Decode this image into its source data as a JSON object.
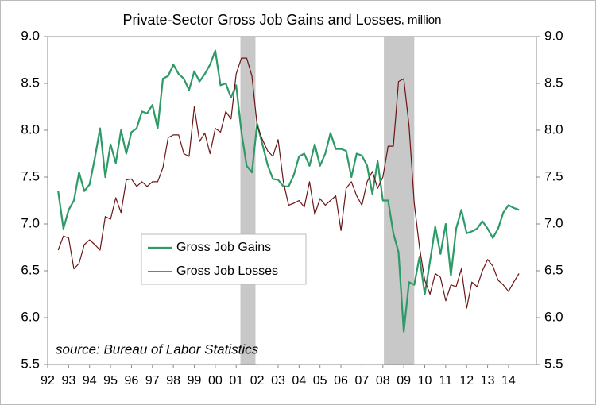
{
  "chart_data": {
    "type": "line",
    "title": "Private-Sector Gross Job Gains and Losses",
    "title_suffix": ", million",
    "annotation": "source: Bureau of Labor Statistics",
    "x": [
      1992.5,
      1992.75,
      1993,
      1993.25,
      1993.5,
      1993.75,
      1994,
      1994.25,
      1994.5,
      1994.75,
      1995,
      1995.25,
      1995.5,
      1995.75,
      1996,
      1996.25,
      1996.5,
      1996.75,
      1997,
      1997.25,
      1997.5,
      1997.75,
      1998,
      1998.25,
      1998.5,
      1998.75,
      1999,
      1999.25,
      1999.5,
      1999.75,
      2000,
      2000.25,
      2000.5,
      2000.75,
      2001,
      2001.25,
      2001.5,
      2001.75,
      2002,
      2002.25,
      2002.5,
      2002.75,
      2003,
      2003.25,
      2003.5,
      2003.75,
      2004,
      2004.25,
      2004.5,
      2004.75,
      2005,
      2005.25,
      2005.5,
      2005.75,
      2006,
      2006.25,
      2006.5,
      2006.75,
      2007,
      2007.25,
      2007.5,
      2007.75,
      2008,
      2008.25,
      2008.5,
      2008.75,
      2009,
      2009.25,
      2009.5,
      2009.75,
      2010,
      2010.25,
      2010.5,
      2010.75,
      2011,
      2011.25,
      2011.5,
      2011.75,
      2012,
      2012.25,
      2012.5,
      2012.75,
      2013,
      2013.25,
      2013.5,
      2013.75,
      2014,
      2014.25,
      2014.5
    ],
    "series": [
      {
        "name": "Gross Job Gains",
        "color": "#2e9a68",
        "values": [
          7.35,
          6.95,
          7.15,
          7.25,
          7.55,
          7.35,
          7.42,
          7.7,
          8.02,
          7.5,
          7.85,
          7.65,
          8.0,
          7.75,
          7.98,
          8.02,
          8.2,
          8.18,
          8.27,
          8.02,
          8.55,
          8.58,
          8.7,
          8.6,
          8.55,
          8.43,
          8.63,
          8.52,
          8.6,
          8.7,
          8.85,
          8.48,
          8.5,
          8.35,
          8.48,
          7.98,
          7.62,
          7.55,
          8.07,
          7.85,
          7.63,
          7.48,
          7.47,
          7.4,
          7.4,
          7.52,
          7.72,
          7.75,
          7.62,
          7.85,
          7.62,
          7.75,
          7.97,
          7.8,
          7.8,
          7.78,
          7.5,
          7.75,
          7.73,
          7.62,
          7.32,
          7.67,
          7.25,
          7.25,
          6.9,
          6.7,
          5.85,
          6.38,
          6.35,
          6.65,
          6.25,
          6.6,
          6.97,
          6.68,
          7.0,
          6.45,
          6.95,
          7.15,
          6.9,
          6.92,
          6.95,
          7.03,
          6.95,
          6.85,
          6.95,
          7.12,
          7.2,
          7.17,
          7.15
        ]
      },
      {
        "name": "Gross Job Losses",
        "color": "#6b1414",
        "values": [
          6.72,
          6.87,
          6.85,
          6.52,
          6.58,
          6.78,
          6.83,
          6.78,
          6.72,
          7.08,
          7.05,
          7.28,
          7.12,
          7.47,
          7.48,
          7.4,
          7.45,
          7.4,
          7.45,
          7.45,
          7.6,
          7.92,
          7.95,
          7.95,
          7.75,
          7.72,
          8.25,
          7.88,
          7.97,
          7.75,
          8.02,
          7.98,
          8.2,
          8.12,
          8.6,
          8.77,
          8.77,
          8.58,
          8.05,
          7.9,
          7.78,
          7.72,
          7.9,
          7.45,
          7.2,
          7.22,
          7.25,
          7.18,
          7.45,
          7.1,
          7.27,
          7.2,
          7.25,
          7.3,
          6.93,
          7.38,
          7.45,
          7.3,
          7.2,
          7.45,
          7.56,
          7.38,
          7.5,
          7.83,
          7.83,
          8.52,
          8.55,
          8.05,
          7.22,
          6.75,
          6.4,
          6.25,
          6.47,
          6.43,
          6.18,
          6.35,
          6.33,
          6.52,
          6.1,
          6.38,
          6.33,
          6.5,
          6.62,
          6.55,
          6.4,
          6.35,
          6.28,
          6.38,
          6.47
        ]
      }
    ],
    "shaded_periods": [
      [
        2001.2,
        2001.92
      ],
      [
        2008.05,
        2009.5
      ]
    ],
    "shade_color": "#c8c8c8",
    "xlim": [
      1992,
      2015.33
    ],
    "xticks": [
      {
        "value": 1992,
        "label": "92"
      },
      {
        "value": 1993,
        "label": "93"
      },
      {
        "value": 1994,
        "label": "94"
      },
      {
        "value": 1995,
        "label": "95"
      },
      {
        "value": 1996,
        "label": "96"
      },
      {
        "value": 1997,
        "label": "97"
      },
      {
        "value": 1998,
        "label": "98"
      },
      {
        "value": 1999,
        "label": "99"
      },
      {
        "value": 2000,
        "label": "00"
      },
      {
        "value": 2001,
        "label": "01"
      },
      {
        "value": 2002,
        "label": "02"
      },
      {
        "value": 2003,
        "label": "03"
      },
      {
        "value": 2004,
        "label": "04"
      },
      {
        "value": 2005,
        "label": "05"
      },
      {
        "value": 2006,
        "label": "06"
      },
      {
        "value": 2007,
        "label": "07"
      },
      {
        "value": 2008,
        "label": "08"
      },
      {
        "value": 2009,
        "label": "09"
      },
      {
        "value": 2010,
        "label": "10"
      },
      {
        "value": 2011,
        "label": "11"
      },
      {
        "value": 2012,
        "label": "12"
      },
      {
        "value": 2013,
        "label": "13"
      },
      {
        "value": 2014,
        "label": "14"
      }
    ],
    "ylim": [
      5.5,
      9
    ],
    "yticks": [
      5.5,
      {
        "value": 6,
        "label": "6.0"
      },
      6.5,
      {
        "value": 7,
        "label": "7.0"
      },
      7.5,
      {
        "value": 8,
        "label": "8.0"
      },
      8.5,
      {
        "value": 9,
        "label": "9.0"
      }
    ],
    "y2lim": [
      5.5,
      9
    ],
    "y2ticks": [
      5.5,
      {
        "value": 6,
        "label": "6.0"
      },
      6.5,
      {
        "value": 7,
        "label": "7.0"
      },
      7.5,
      {
        "value": 8,
        "label": "8.0"
      },
      8.5,
      {
        "value": 9,
        "label": "9.0"
      }
    ],
    "grid": false,
    "legend": "center-left"
  }
}
